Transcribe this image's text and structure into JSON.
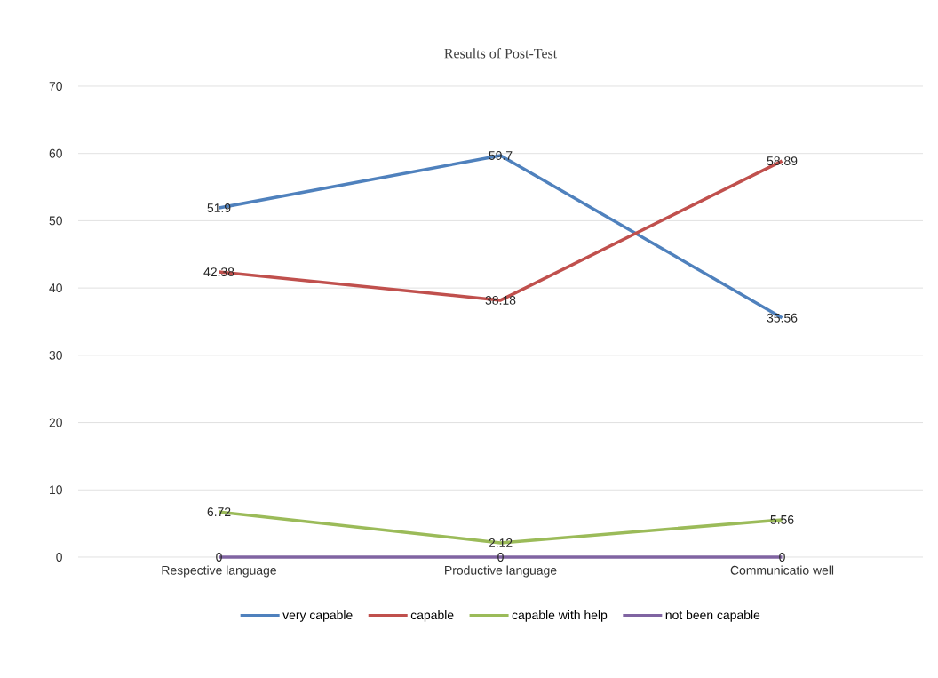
{
  "chart_data": {
    "type": "line",
    "title": "Results of  Post-Test",
    "categories": [
      "Respective language",
      "Productive language",
      "Communicatio well"
    ],
    "series": [
      {
        "name": "very capable",
        "color": "#4f81bd",
        "values": [
          51.9,
          59.7,
          35.56
        ]
      },
      {
        "name": "capable",
        "color": "#c0504d",
        "values": [
          42.38,
          38.18,
          58.89
        ]
      },
      {
        "name": "capable with help",
        "color": "#9bbb59",
        "values": [
          6.72,
          2.12,
          5.56
        ]
      },
      {
        "name": "not been capable",
        "color": "#8064a2",
        "values": [
          0,
          0,
          0
        ]
      }
    ],
    "ylim": [
      0,
      70
    ],
    "yticks": [
      0,
      10,
      20,
      30,
      40,
      50,
      60,
      70
    ],
    "grid": "y",
    "legend": "bottom",
    "data_labels": true,
    "marker": "none",
    "line_style": "solid"
  }
}
